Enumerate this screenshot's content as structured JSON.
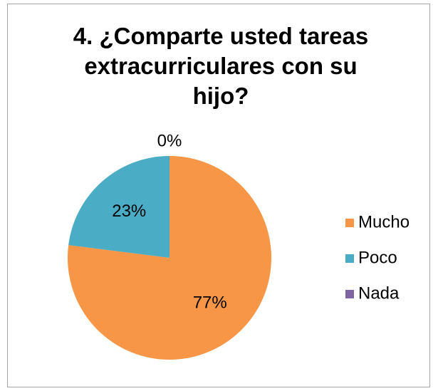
{
  "chart_data": {
    "type": "pie",
    "title": "4. ¿Comparte usted tareas extracurriculares con su hijo?",
    "categories": [
      "Mucho",
      "Poco",
      "Nada"
    ],
    "values": [
      77,
      23,
      0
    ],
    "value_labels": [
      "77%",
      "23%",
      "0%"
    ],
    "colors": [
      "#f79646",
      "#4bacc6",
      "#8064a2"
    ],
    "legend": "right"
  }
}
